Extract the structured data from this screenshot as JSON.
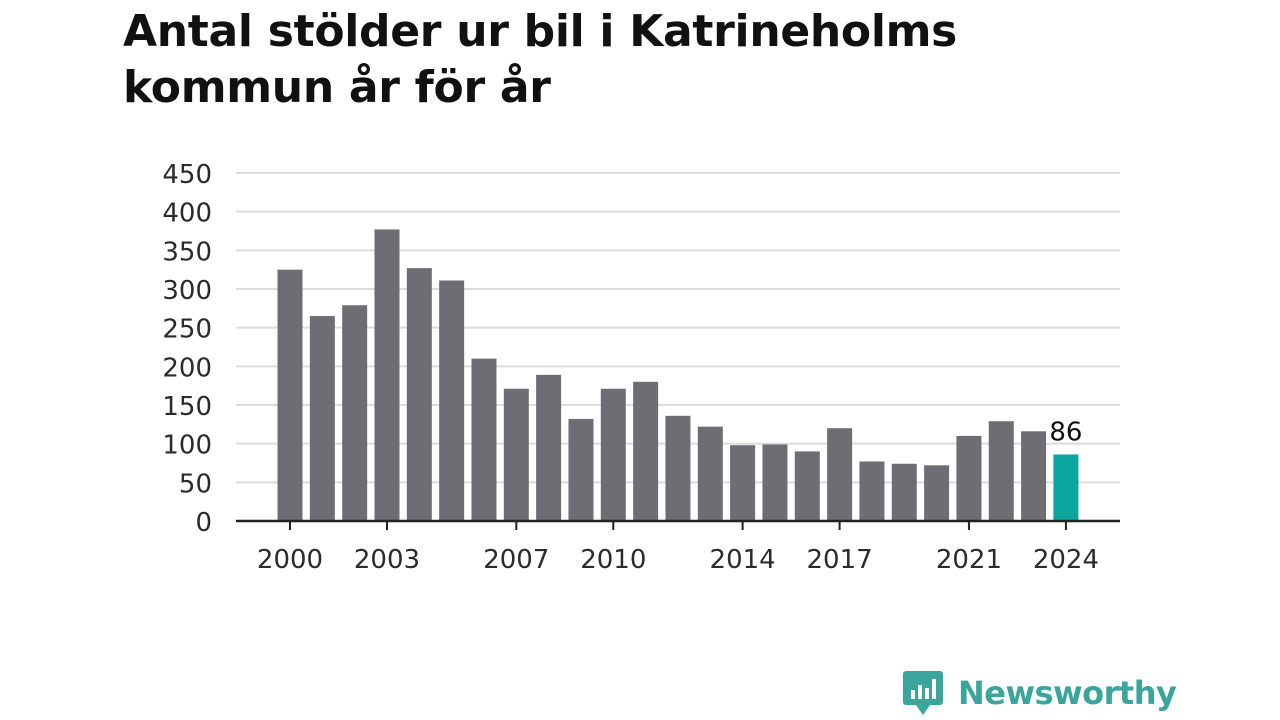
{
  "title": "Antal stölder ur bil i Katrineholms kommun år för år",
  "chart_data": {
    "type": "bar",
    "title": "Antal stölder ur bil i Katrineholms kommun år för år",
    "xlabel": "",
    "ylabel": "",
    "categories": [
      2000,
      2001,
      2002,
      2003,
      2004,
      2005,
      2006,
      2007,
      2008,
      2009,
      2010,
      2011,
      2012,
      2013,
      2014,
      2015,
      2016,
      2017,
      2018,
      2019,
      2020,
      2021,
      2022,
      2023,
      2024
    ],
    "values": [
      325,
      265,
      279,
      377,
      327,
      311,
      210,
      171,
      189,
      132,
      171,
      180,
      136,
      122,
      98,
      99,
      90,
      120,
      77,
      74,
      72,
      110,
      129,
      116,
      86
    ],
    "x_tick_labels": [
      "2000",
      "2003",
      "2007",
      "2010",
      "2014",
      "2017",
      "2021",
      "2024"
    ],
    "y_ticks": [
      0,
      50,
      100,
      150,
      200,
      250,
      300,
      350,
      400,
      450
    ],
    "ylim": [
      0,
      450
    ],
    "grid": true,
    "highlight": {
      "category": 2024,
      "label": "86"
    },
    "colors": {
      "bar": "#6e6d73",
      "highlight": "#0aa59c",
      "grid": "#dcdcdc",
      "axis": "#222222"
    }
  },
  "logo": {
    "text": "Newsworthy",
    "icon": "newsworthy-chat-chart-icon",
    "color": "#3aa69b"
  }
}
